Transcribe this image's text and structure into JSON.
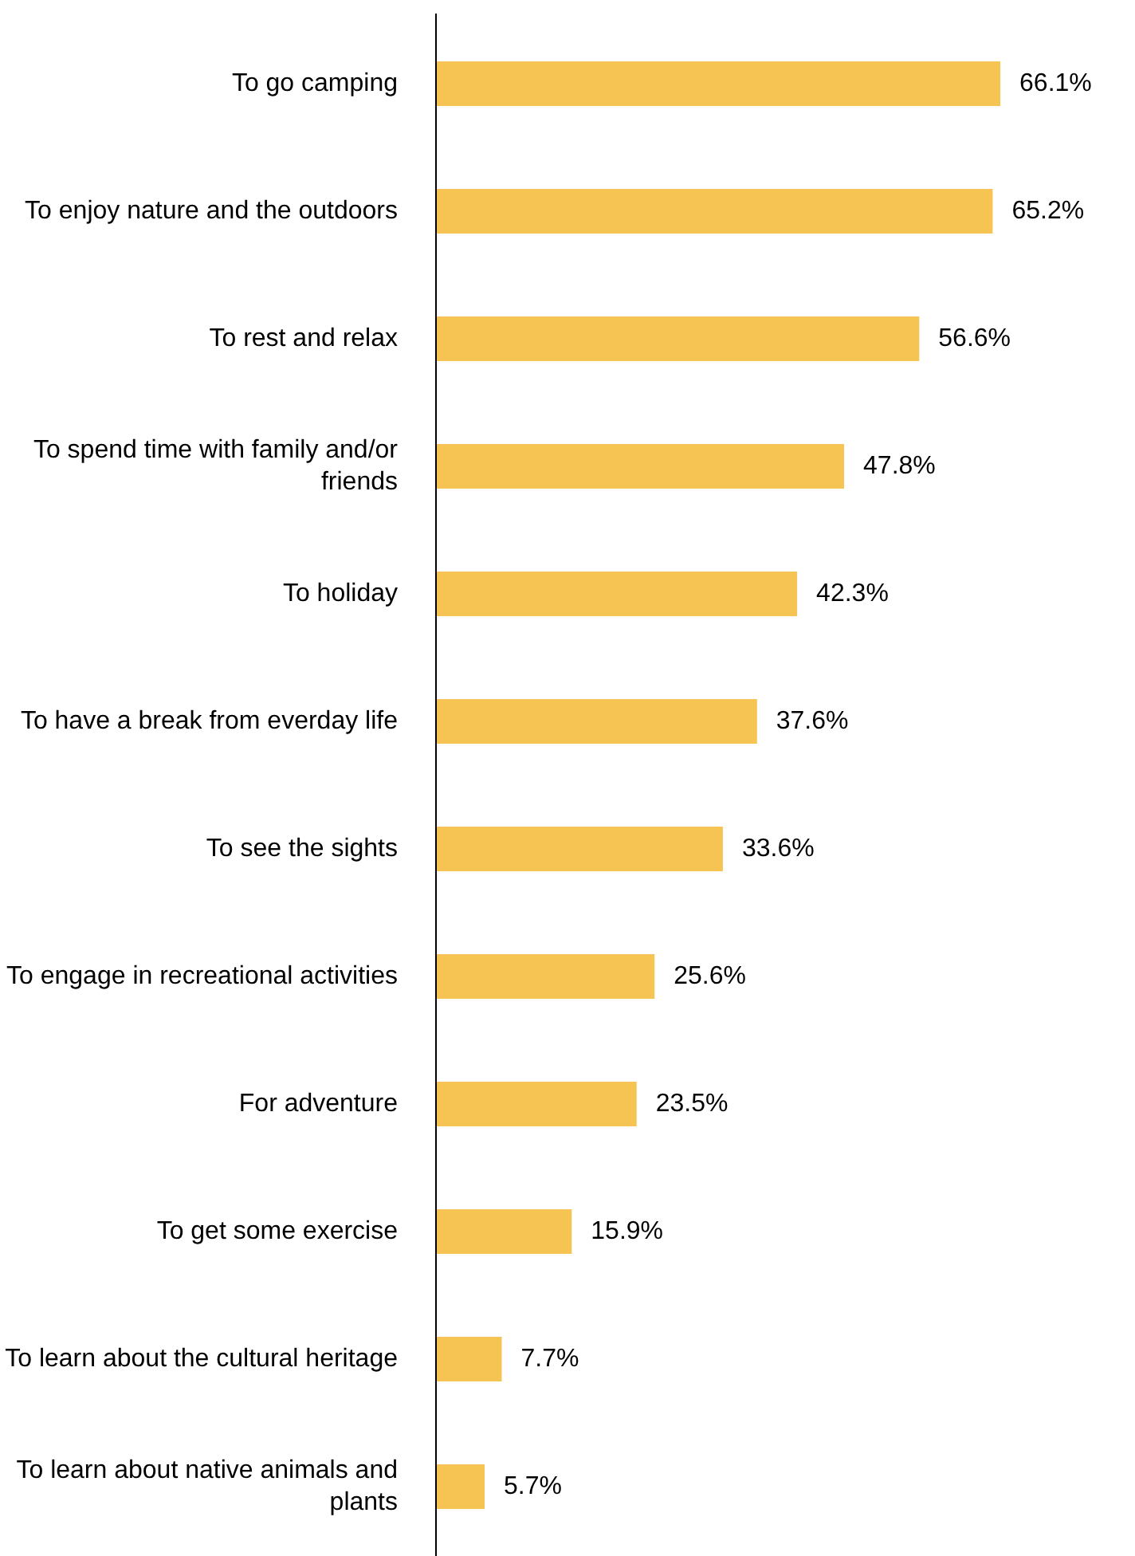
{
  "chart_data": {
    "type": "bar",
    "orientation": "horizontal",
    "categories": [
      "To go camping",
      "To enjoy nature and the outdoors",
      "To rest and relax",
      "To spend time with family and/or friends",
      "To holiday",
      "To have a break from everday life",
      "To see the sights",
      "To engage in recreational activities",
      "For adventure",
      "To get some exercise",
      "To learn about the cultural heritage",
      "To learn about native animals and plants"
    ],
    "values": [
      66.1,
      65.2,
      56.6,
      47.8,
      42.3,
      37.6,
      33.6,
      25.6,
      23.5,
      15.9,
      7.7,
      5.7
    ],
    "value_labels": [
      "66.1%",
      "65.2%",
      "56.6%",
      "47.8%",
      "42.3%",
      "37.6%",
      "33.6%",
      "25.6%",
      "23.5%",
      "15.9%",
      "7.7%",
      "5.7%"
    ],
    "color": "#f5c452",
    "grid": false
  }
}
